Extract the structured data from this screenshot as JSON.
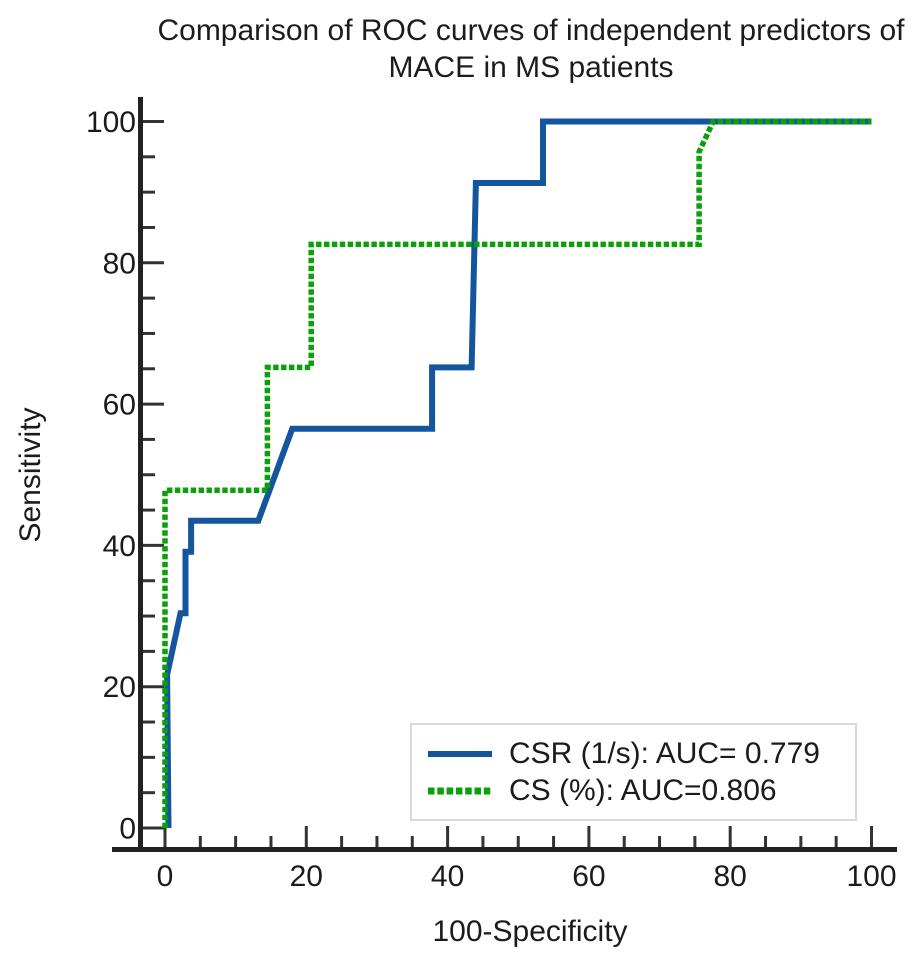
{
  "page": {
    "background": "#ffffff"
  },
  "chart_data": {
    "type": "line",
    "chart_kind": "roc-curve-comparison",
    "title": "Comparison of ROC curves of independent predictors of MACE in MS patients",
    "xlabel": "100-Specificity",
    "ylabel": "Sensitivity",
    "xlim": [
      0,
      100
    ],
    "ylim": [
      0,
      100
    ],
    "x_ticks": [
      0,
      20,
      40,
      60,
      80,
      100
    ],
    "y_ticks": [
      0,
      20,
      40,
      60,
      80,
      100
    ],
    "minor_tick_step": 5,
    "grid": false,
    "axis_color": "#222222",
    "tick_color": "#333333",
    "legend": {
      "position": "inside-bottom-right",
      "border_color": "#d9d9d9",
      "background": "#ffffff"
    },
    "series": [
      {
        "name": "CSR (1/s): AUC= 0.779",
        "auc": 0.779,
        "color": "#14569d",
        "line_style": "solid",
        "points": [
          [
            0.5,
            0
          ],
          [
            0.3,
            21.7
          ],
          [
            2.2,
            30.4
          ],
          [
            2.9,
            30.4
          ],
          [
            2.9,
            39.1
          ],
          [
            3.7,
            39.1
          ],
          [
            3.7,
            43.5
          ],
          [
            13.2,
            43.5
          ],
          [
            18,
            56.5
          ],
          [
            37.8,
            56.5
          ],
          [
            37.8,
            65.2
          ],
          [
            43.4,
            65.2
          ],
          [
            44,
            91.3
          ],
          [
            53.5,
            91.3
          ],
          [
            53.5,
            100
          ],
          [
            100,
            100
          ]
        ]
      },
      {
        "name": "CS (%): AUC=0.806",
        "auc": 0.806,
        "color": "#0aa00a",
        "line_style": "dashed",
        "points": [
          [
            0,
            0
          ],
          [
            0,
            47.8
          ],
          [
            14.5,
            47.8
          ],
          [
            14.5,
            65.2
          ],
          [
            20.7,
            65.2
          ],
          [
            20.7,
            82.6
          ],
          [
            75.6,
            82.6
          ],
          [
            75.6,
            95.7
          ],
          [
            77.6,
            100
          ],
          [
            100,
            100
          ]
        ]
      }
    ]
  }
}
